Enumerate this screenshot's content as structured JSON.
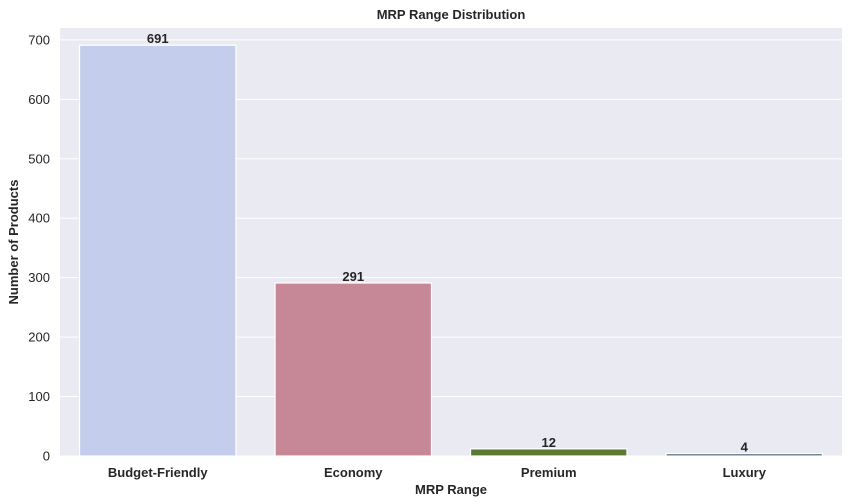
{
  "chart_data": {
    "type": "bar",
    "title": "MRP Range Distribution",
    "xlabel": "MRP Range",
    "ylabel": "Number of Products",
    "categories": [
      "Budget-Friendly",
      "Economy",
      "Premium",
      "Luxury"
    ],
    "values": [
      691,
      291,
      12,
      4
    ],
    "data_labels": [
      "691",
      "291",
      "12",
      "4"
    ],
    "colors": [
      "#c5cdec",
      "#c68797",
      "#5b7a34",
      "#4d6a78"
    ],
    "ylim": [
      0,
      720
    ],
    "yticks": [
      0,
      100,
      200,
      300,
      400,
      500,
      600,
      700
    ],
    "ytick_labels": [
      "0",
      "100",
      "200",
      "300",
      "400",
      "500",
      "600",
      "700"
    ],
    "grid": true,
    "background": "#eaeaf2",
    "grid_color": "#ffffff"
  }
}
